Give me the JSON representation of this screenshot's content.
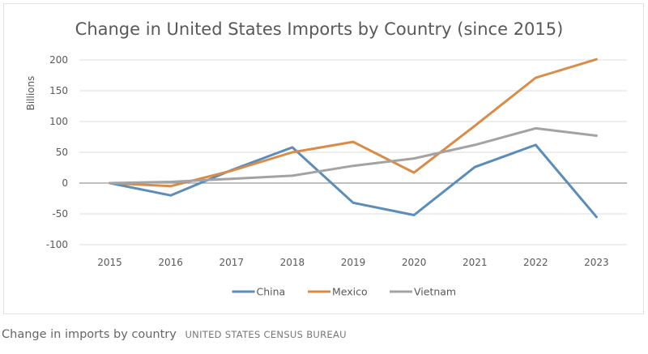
{
  "chart_data": {
    "type": "line",
    "title": "Change in United States Imports by Country (since 2015)",
    "xlabel": "",
    "ylabel": "Billions",
    "categories": [
      "2015",
      "2016",
      "2017",
      "2018",
      "2019",
      "2020",
      "2021",
      "2022",
      "2023"
    ],
    "yticks": [
      200,
      150,
      100,
      50,
      0,
      -50,
      -100
    ],
    "ylim": [
      -100,
      200
    ],
    "grid": true,
    "legend_position": "bottom",
    "series": [
      {
        "name": "China",
        "color": "#5b8db8",
        "values": [
          0,
          -20,
          21,
          58,
          -32,
          -52,
          26,
          62,
          -55
        ]
      },
      {
        "name": "Mexico",
        "color": "#d98c4a",
        "values": [
          0,
          -5,
          20,
          50,
          67,
          17,
          93,
          171,
          201
        ]
      },
      {
        "name": "Vietnam",
        "color": "#a3a3a3",
        "values": [
          0,
          2,
          7,
          12,
          28,
          40,
          62,
          89,
          77
        ]
      }
    ]
  },
  "caption": {
    "text": "Change in imports by country",
    "credit": "United States Census Bureau"
  }
}
